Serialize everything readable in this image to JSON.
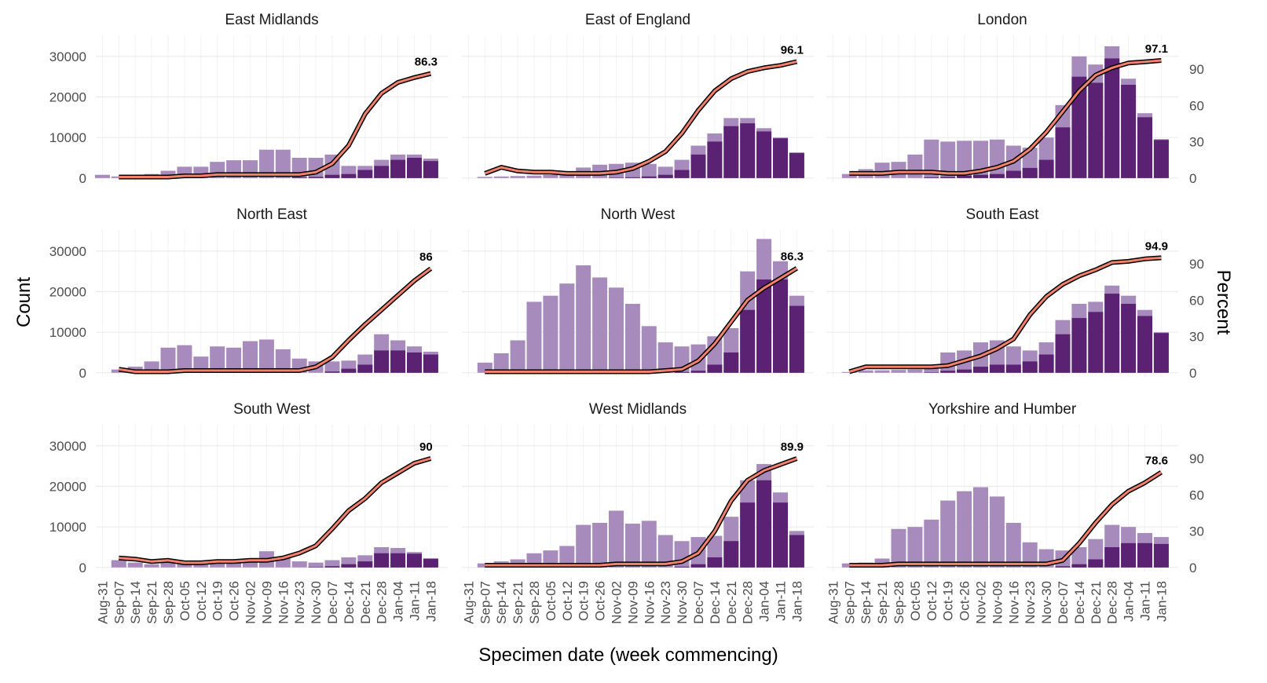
{
  "chart_data": {
    "type": "bar",
    "xlabel": "Specimen date (week commencing)",
    "ylabel": "Count",
    "y2label": "Percent",
    "categories": [
      "Aug-31",
      "Sep-07",
      "Sep-14",
      "Sep-21",
      "Sep-28",
      "Oct-05",
      "Oct-12",
      "Oct-19",
      "Oct-26",
      "Nov-02",
      "Nov-09",
      "Nov-16",
      "Nov-23",
      "Nov-30",
      "Dec-07",
      "Dec-14",
      "Dec-21",
      "Dec-28",
      "Jan-04",
      "Jan-11",
      "Jan-18"
    ],
    "ylim": [
      -1000,
      35200
    ],
    "yticks": [
      0,
      10000,
      20000,
      30000
    ],
    "y2lim": [
      -3.2,
      117.8
    ],
    "y2ticks": [
      0,
      30,
      60,
      90
    ],
    "grid": true,
    "panels": [
      {
        "title": "East Midlands",
        "series": [
          {
            "type": "bar",
            "color": "#a78bbd",
            "values": [
              800,
              400,
              600,
              1000,
              1800,
              2800,
              2800,
              4000,
              4400,
              4400,
              7000,
              7000,
              5000,
              5000,
              5800,
              3000,
              3000,
              4500,
              5800,
              5800,
              4800
            ]
          },
          {
            "type": "bar",
            "color": "#5b2173",
            "values": [
              0,
              0,
              0,
              0,
              0,
              0,
              0,
              0,
              0,
              0,
              0,
              0,
              200,
              300,
              800,
              1000,
              2000,
              3000,
              4500,
              5000,
              4200
            ]
          },
          {
            "type": "line",
            "axis": "y2",
            "color": "#f4806e",
            "values": [
              null,
              1,
              1,
              1,
              1,
              2,
              2,
              3,
              3,
              3,
              3,
              3,
              3,
              5,
              12,
              27,
              53,
              70,
              79,
              83,
              86.3
            ]
          }
        ]
      },
      {
        "title": "East of England",
        "series": [
          {
            "type": "bar",
            "color": "#a78bbd",
            "values": [
              0,
              300,
              400,
              500,
              600,
              800,
              1500,
              2600,
              3300,
              3500,
              3800,
              3500,
              2800,
              4500,
              8000,
              11000,
              14800,
              14800,
              12300,
              10000,
              6300
            ]
          },
          {
            "type": "bar",
            "color": "#5b2173",
            "values": [
              0,
              0,
              0,
              0,
              0,
              0,
              0,
              0,
              0,
              100,
              200,
              400,
              800,
              2000,
              5800,
              9000,
              12800,
              13500,
              11500,
              9800,
              6200
            ]
          },
          {
            "type": "line",
            "axis": "y2",
            "color": "#f4806e",
            "values": [
              null,
              4,
              9,
              6,
              5,
              5,
              4,
              4,
              4,
              5,
              8,
              14,
              22,
              37,
              56,
              72,
              82,
              88,
              91,
              93,
              96.1
            ]
          }
        ]
      },
      {
        "title": "London",
        "series": [
          {
            "type": "bar",
            "color": "#a78bbd",
            "values": [
              0,
              1000,
              2200,
              3800,
              4000,
              5800,
              9500,
              9000,
              9200,
              9200,
              9500,
              8000,
              7500,
              10000,
              18000,
              30000,
              28000,
              32500,
              24500,
              16000,
              9600
            ]
          },
          {
            "type": "bar",
            "color": "#5b2173",
            "values": [
              0,
              0,
              0,
              0,
              0,
              0,
              200,
              300,
              600,
              800,
              1000,
              1800,
              2500,
              4500,
              12500,
              25000,
              23500,
              29500,
              23000,
              15000,
              9400
            ]
          },
          {
            "type": "line",
            "axis": "y2",
            "color": "#f4806e",
            "values": [
              null,
              4,
              4,
              4,
              5,
              5,
              5,
              4,
              4,
              6,
              9,
              14,
              24,
              38,
              55,
              72,
              85,
              91,
              95,
              96,
              97.1
            ]
          }
        ]
      },
      {
        "title": "North East",
        "series": [
          {
            "type": "bar",
            "color": "#a78bbd",
            "values": [
              0,
              800,
              1500,
              2800,
              6200,
              6800,
              4000,
              6500,
              6200,
              7800,
              8200,
              5800,
              3500,
              2800,
              2800,
              3000,
              4500,
              9500,
              8000,
              6500,
              5200
            ]
          },
          {
            "type": "bar",
            "color": "#5b2173",
            "values": [
              0,
              0,
              0,
              0,
              0,
              0,
              0,
              0,
              0,
              0,
              0,
              0,
              0,
              0,
              300,
              1000,
              2000,
              5500,
              5500,
              5000,
              4500
            ]
          },
          {
            "type": "line",
            "axis": "y2",
            "color": "#f4806e",
            "values": [
              null,
              3,
              1,
              1,
              1,
              2,
              2,
              2,
              2,
              2,
              2,
              2,
              2,
              5,
              13,
              27,
              40,
              52,
              64,
              76,
              86.0
            ]
          }
        ]
      },
      {
        "title": "North West",
        "series": [
          {
            "type": "bar",
            "color": "#a78bbd",
            "values": [
              0,
              2500,
              4800,
              8000,
              17500,
              19000,
              22000,
              26500,
              23500,
              21000,
              17000,
              11500,
              7500,
              6500,
              7000,
              9000,
              11000,
              25000,
              33000,
              27500,
              19000
            ]
          },
          {
            "type": "bar",
            "color": "#5b2173",
            "values": [
              0,
              0,
              0,
              0,
              0,
              0,
              0,
              0,
              0,
              0,
              0,
              0,
              0,
              200,
              500,
              2000,
              5000,
              15500,
              23000,
              23000,
              16500
            ]
          },
          {
            "type": "line",
            "axis": "y2",
            "color": "#f4806e",
            "values": [
              null,
              1,
              1,
              1,
              1,
              1,
              1,
              1,
              1,
              1,
              1,
              1,
              2,
              3,
              10,
              24,
              42,
              60,
              70,
              78,
              86.3
            ]
          }
        ]
      },
      {
        "title": "South East",
        "series": [
          {
            "type": "bar",
            "color": "#a78bbd",
            "values": [
              0,
              200,
              600,
              600,
              700,
              800,
              1000,
              5000,
              5500,
              7500,
              8000,
              6500,
              5500,
              7500,
              13000,
              17000,
              17500,
              21500,
              19000,
              15500,
              10000
            ]
          },
          {
            "type": "bar",
            "color": "#5b2173",
            "values": [
              0,
              0,
              0,
              0,
              0,
              0,
              100,
              500,
              800,
              1500,
              2000,
              2000,
              2800,
              4500,
              9500,
              13500,
              15000,
              19500,
              17000,
              14000,
              9800
            ]
          },
          {
            "type": "line",
            "axis": "y2",
            "color": "#f4806e",
            "values": [
              null,
              1,
              5,
              5,
              5,
              5,
              5,
              6,
              10,
              14,
              20,
              28,
              48,
              63,
              73,
              80,
              85,
              91,
              92,
              94,
              94.9
            ]
          }
        ]
      },
      {
        "title": "South West",
        "series": [
          {
            "type": "bar",
            "color": "#a78bbd",
            "values": [
              0,
              1800,
              1200,
              800,
              1200,
              800,
              1000,
              1000,
              1500,
              2000,
              4000,
              2500,
              1500,
              1200,
              1800,
              2500,
              3000,
              5000,
              4800,
              3800,
              2300
            ]
          },
          {
            "type": "bar",
            "color": "#5b2173",
            "values": [
              0,
              0,
              0,
              0,
              0,
              0,
              0,
              0,
              0,
              0,
              0,
              0,
              0,
              100,
              300,
              800,
              1500,
              3500,
              3500,
              3400,
              2100
            ]
          },
          {
            "type": "line",
            "axis": "y2",
            "color": "#f4806e",
            "values": [
              null,
              8,
              7,
              5,
              6,
              4,
              4,
              5,
              5,
              6,
              6,
              8,
              12,
              18,
              32,
              47,
              57,
              70,
              78,
              86,
              90.0
            ]
          }
        ]
      },
      {
        "title": "West Midlands",
        "series": [
          {
            "type": "bar",
            "color": "#a78bbd",
            "values": [
              0,
              1000,
              1500,
              2000,
              3500,
              4200,
              5300,
              10500,
              11000,
              14000,
              10800,
              11500,
              8000,
              6500,
              7500,
              7800,
              12500,
              21500,
              25500,
              18500,
              9000
            ]
          },
          {
            "type": "bar",
            "color": "#5b2173",
            "values": [
              0,
              0,
              0,
              0,
              0,
              0,
              0,
              0,
              0,
              0,
              0,
              0,
              0,
              200,
              800,
              2500,
              6500,
              16000,
              21500,
              16000,
              8000
            ]
          },
          {
            "type": "line",
            "axis": "y2",
            "color": "#f4806e",
            "values": [
              null,
              2,
              2,
              2,
              2,
              2,
              2,
              2,
              2,
              3,
              3,
              3,
              3,
              5,
              12,
              30,
              55,
              72,
              80,
              85,
              89.9
            ]
          }
        ]
      },
      {
        "title": "Yorkshire and Humber",
        "series": [
          {
            "type": "bar",
            "color": "#a78bbd",
            "values": [
              0,
              1000,
              1200,
              2200,
              9500,
              10000,
              11800,
              16500,
              18800,
              19800,
              17500,
              11000,
              6200,
              4500,
              4200,
              5000,
              7000,
              10500,
              10000,
              8500,
              7500
            ]
          },
          {
            "type": "bar",
            "color": "#5b2173",
            "values": [
              0,
              0,
              0,
              0,
              0,
              0,
              0,
              0,
              0,
              0,
              0,
              0,
              0,
              0,
              300,
              800,
              2000,
              5000,
              6000,
              6000,
              5800
            ]
          },
          {
            "type": "line",
            "axis": "y2",
            "color": "#f4806e",
            "values": [
              null,
              2,
              2,
              2,
              3,
              3,
              3,
              3,
              3,
              3,
              3,
              3,
              3,
              3,
              6,
              20,
              37,
              52,
              63,
              70,
              78.6
            ]
          }
        ]
      }
    ]
  }
}
